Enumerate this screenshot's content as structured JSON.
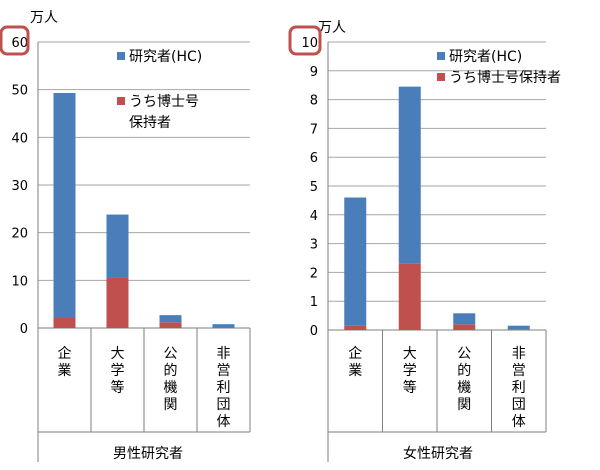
{
  "colors": {
    "hc": "#4a7ebb",
    "phd": "#c0504d",
    "grid": "#a6a6a6",
    "axis": "#7f7f7f",
    "highlight": "#c0504d"
  },
  "chart_data": [
    {
      "type": "bar",
      "stacked": true,
      "title": "男性研究者",
      "unit": "万人",
      "ylim": [
        0,
        60
      ],
      "yticks": [
        "0",
        "10",
        "20",
        "30",
        "40",
        "50",
        "60"
      ],
      "categories": [
        "企業",
        "大学等",
        "公的機関",
        "非営利団体"
      ],
      "series": [
        {
          "name": "うち博士号保持者",
          "values": [
            2.3,
            10.5,
            1.2,
            0.2
          ]
        },
        {
          "name": "研究者(HC)",
          "values": [
            47.0,
            13.3,
            1.5,
            0.6
          ]
        }
      ],
      "totals": [
        49.3,
        23.8,
        2.7,
        0.8
      ],
      "legend": {
        "position": "top-right",
        "entries": [
          "研究者(HC)",
          "うち博士号保持者"
        ]
      },
      "grid": true
    },
    {
      "type": "bar",
      "stacked": true,
      "title": "女性研究者",
      "unit": "万人",
      "ylim": [
        0,
        10
      ],
      "yticks": [
        "0",
        "1",
        "2",
        "3",
        "4",
        "5",
        "6",
        "7",
        "8",
        "9",
        "10"
      ],
      "categories": [
        "企業",
        "大学等",
        "公的機関",
        "非営利団体"
      ],
      "series": [
        {
          "name": "うち博士号保持者",
          "values": [
            0.15,
            2.3,
            0.2,
            0.03
          ]
        },
        {
          "name": "研究者(HC)",
          "values": [
            4.45,
            6.15,
            0.38,
            0.12
          ]
        }
      ],
      "totals": [
        4.6,
        8.45,
        0.58,
        0.15
      ],
      "legend": {
        "position": "top-right",
        "entries": [
          "研究者(HC)",
          "うち博士号保持者"
        ]
      },
      "grid": true
    }
  ]
}
